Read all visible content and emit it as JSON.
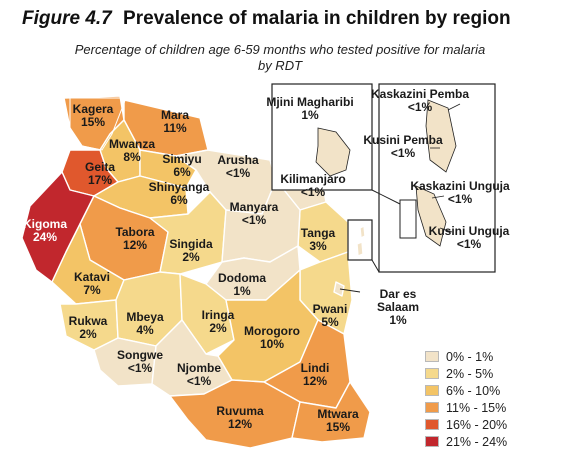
{
  "figure": {
    "number": "Figure 4.7",
    "title": "Prevalence of malaria in children by region",
    "subtitle_line1": "Percentage of children age 6-59 months who tested positive for malaria",
    "subtitle_line2": "by RDT"
  },
  "colors": {
    "c0_1": "#f2e3c8",
    "c2_5": "#f5d98c",
    "c6_10": "#f3c466",
    "c11_15": "#f09b4a",
    "c16_20": "#e0582d",
    "c21_24": "#c1272d",
    "border": "#ffffff",
    "line": "#333333"
  },
  "regions": [
    {
      "name": "Kagera",
      "value": "15%"
    },
    {
      "name": "Mara",
      "value": "11%"
    },
    {
      "name": "Mwanza",
      "value": "8%"
    },
    {
      "name": "Geita",
      "value": "17%"
    },
    {
      "name": "Simiyu",
      "value": "6%"
    },
    {
      "name": "Arusha",
      "value": "<1%"
    },
    {
      "name": "Shinyanga",
      "value": "6%"
    },
    {
      "name": "Kilimanjaro",
      "value": "<1%"
    },
    {
      "name": "Manyara",
      "value": "<1%"
    },
    {
      "name": "Kigoma",
      "value": "24%"
    },
    {
      "name": "Tabora",
      "value": "12%"
    },
    {
      "name": "Singida",
      "value": "2%"
    },
    {
      "name": "Tanga",
      "value": "3%"
    },
    {
      "name": "Katavi",
      "value": "7%"
    },
    {
      "name": "Dodoma",
      "value": "1%"
    },
    {
      "name": "Rukwa",
      "value": "2%"
    },
    {
      "name": "Mbeya",
      "value": "4%"
    },
    {
      "name": "Iringa",
      "value": "2%"
    },
    {
      "name": "Morogoro",
      "value": "10%"
    },
    {
      "name": "Pwani",
      "value": "5%"
    },
    {
      "name": "Dar es Salaam",
      "value": "1%"
    },
    {
      "name": "Songwe",
      "value": "<1%"
    },
    {
      "name": "Njombe",
      "value": "<1%"
    },
    {
      "name": "Lindi",
      "value": "12%"
    },
    {
      "name": "Ruvuma",
      "value": "12%"
    },
    {
      "name": "Mtwara",
      "value": "15%"
    }
  ],
  "insets": [
    {
      "name": "Mjini Magharibi",
      "value": "1%"
    },
    {
      "name": "Kaskazini Pemba",
      "value": "<1%"
    },
    {
      "name": "Kusini Pemba",
      "value": "<1%"
    },
    {
      "name": "Kaskazini Unguja",
      "value": "<1%"
    },
    {
      "name": "Kusini Unguja",
      "value": "<1%"
    }
  ],
  "legend": [
    {
      "label": "0% - 1%",
      "color": "#f2e3c8"
    },
    {
      "label": "2% - 5%",
      "color": "#f5d98c"
    },
    {
      "label": "6% - 10%",
      "color": "#f3c466"
    },
    {
      "label": "11% - 15%",
      "color": "#f09b4a"
    },
    {
      "label": "16% - 20%",
      "color": "#e0582d"
    },
    {
      "label": "21% - 24%",
      "color": "#c1272d"
    }
  ]
}
